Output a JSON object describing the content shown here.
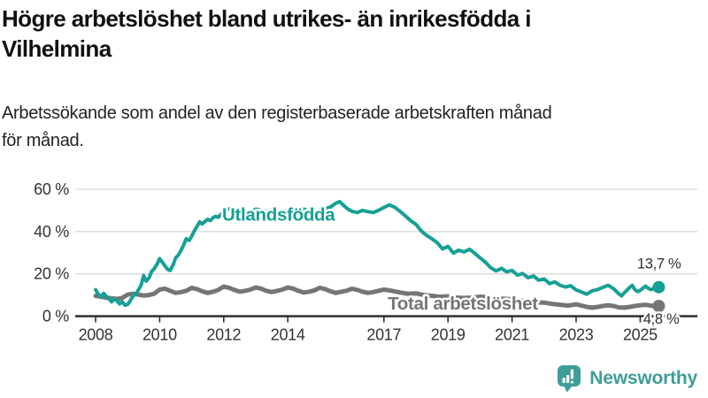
{
  "header": {
    "title_lines": [
      "Högre arbetslöshet bland utrikes- än inrikesfödda i",
      "Vilhelmina"
    ],
    "subtitle_lines": [
      "Arbetssökande som andel av den registerbaserade arbetskraften månad",
      "för månad."
    ]
  },
  "branding": {
    "name": "Newsworthy",
    "brand_color": "#3d9e98",
    "icon": "newsworthy-bar-chart-bubble-icon"
  },
  "chart_data": {
    "type": "line",
    "title": "Högre arbetslöshet bland utrikes- än inrikesfödda i Vilhelmina",
    "subtitle": "Arbetssökande som andel av den registerbaserade arbetskraften månad för månad.",
    "x_axis": {
      "ticks": [
        2008,
        2010,
        2012,
        2014,
        2017,
        2019,
        2021,
        2023,
        2025
      ],
      "range": [
        2007.4,
        2025.8
      ],
      "unit": "year"
    },
    "y_axis": {
      "ticks": [
        0,
        20,
        40,
        60
      ],
      "tick_suffix": " %",
      "range": [
        0,
        62
      ],
      "grid": true,
      "grid_color": "#d9d9d9",
      "axis_color": "#2e2e2e"
    },
    "series": [
      {
        "name": "Total arbetslöshet",
        "color": "#757575",
        "line_width": 5,
        "label_pos": [
          2017.12,
          3.2
        ],
        "end_value": 4.8,
        "end_label": "4,8 %",
        "points": [
          [
            2008.0,
            9.6
          ],
          [
            2008.17,
            9.2
          ],
          [
            2008.33,
            8.8
          ],
          [
            2008.5,
            8.4
          ],
          [
            2008.67,
            8.2
          ],
          [
            2008.83,
            8.6
          ],
          [
            2009.0,
            10.2
          ],
          [
            2009.17,
            10.6
          ],
          [
            2009.33,
            10.2
          ],
          [
            2009.5,
            9.8
          ],
          [
            2009.67,
            10.0
          ],
          [
            2009.83,
            10.6
          ],
          [
            2010.0,
            12.6
          ],
          [
            2010.17,
            13.0
          ],
          [
            2010.33,
            12.0
          ],
          [
            2010.5,
            11.0
          ],
          [
            2010.67,
            11.4
          ],
          [
            2010.83,
            12.0
          ],
          [
            2011.0,
            13.4
          ],
          [
            2011.17,
            12.8
          ],
          [
            2011.33,
            11.8
          ],
          [
            2011.5,
            11.0
          ],
          [
            2011.67,
            11.6
          ],
          [
            2011.83,
            12.4
          ],
          [
            2012.0,
            14.0
          ],
          [
            2012.17,
            13.4
          ],
          [
            2012.33,
            12.4
          ],
          [
            2012.5,
            11.6
          ],
          [
            2012.67,
            12.0
          ],
          [
            2012.83,
            12.6
          ],
          [
            2013.0,
            13.6
          ],
          [
            2013.17,
            13.0
          ],
          [
            2013.33,
            12.0
          ],
          [
            2013.5,
            11.4
          ],
          [
            2013.67,
            12.0
          ],
          [
            2013.83,
            12.6
          ],
          [
            2014.0,
            13.6
          ],
          [
            2014.17,
            13.0
          ],
          [
            2014.33,
            12.0
          ],
          [
            2014.5,
            11.2
          ],
          [
            2014.67,
            11.6
          ],
          [
            2014.83,
            12.2
          ],
          [
            2015.0,
            13.4
          ],
          [
            2015.17,
            12.8
          ],
          [
            2015.33,
            11.8
          ],
          [
            2015.5,
            11.0
          ],
          [
            2015.67,
            11.6
          ],
          [
            2015.83,
            12.0
          ],
          [
            2016.0,
            13.0
          ],
          [
            2016.17,
            12.4
          ],
          [
            2016.33,
            11.6
          ],
          [
            2016.5,
            11.0
          ],
          [
            2016.67,
            11.4
          ],
          [
            2016.83,
            12.0
          ],
          [
            2017.0,
            12.6
          ],
          [
            2017.25,
            12.0
          ],
          [
            2017.5,
            11.2
          ],
          [
            2017.75,
            10.6
          ],
          [
            2018.0,
            10.8
          ],
          [
            2018.25,
            10.0
          ],
          [
            2018.5,
            9.6
          ],
          [
            2018.75,
            9.2
          ],
          [
            2019.0,
            9.4
          ],
          [
            2019.25,
            8.8
          ],
          [
            2019.5,
            8.6
          ],
          [
            2019.75,
            8.8
          ],
          [
            2020.0,
            9.2
          ],
          [
            2020.25,
            9.0
          ],
          [
            2020.5,
            8.6
          ],
          [
            2020.75,
            8.2
          ],
          [
            2021.0,
            8.0
          ],
          [
            2021.25,
            7.4
          ],
          [
            2021.5,
            7.0
          ],
          [
            2021.75,
            6.6
          ],
          [
            2022.0,
            6.4
          ],
          [
            2022.25,
            5.8
          ],
          [
            2022.5,
            5.4
          ],
          [
            2022.75,
            5.0
          ],
          [
            2023.0,
            5.6
          ],
          [
            2023.17,
            5.0
          ],
          [
            2023.33,
            4.4
          ],
          [
            2023.5,
            4.0
          ],
          [
            2023.67,
            4.4
          ],
          [
            2023.83,
            4.8
          ],
          [
            2024.0,
            5.2
          ],
          [
            2024.17,
            4.8
          ],
          [
            2024.33,
            4.2
          ],
          [
            2024.5,
            4.0
          ],
          [
            2024.67,
            4.4
          ],
          [
            2024.83,
            4.8
          ],
          [
            2025.0,
            5.2
          ],
          [
            2025.17,
            5.4
          ],
          [
            2025.33,
            5.0
          ],
          [
            2025.42,
            4.8
          ],
          [
            2025.58,
            4.8
          ]
        ]
      },
      {
        "name": "Utlandsfödda",
        "color": "#16a096",
        "line_width": 4,
        "label_pos": [
          2011.95,
          45.2
        ],
        "end_value": 13.7,
        "end_label": "13,7 %",
        "points": [
          [
            2008.0,
            12.5
          ],
          [
            2008.08,
            10.5
          ],
          [
            2008.17,
            9.0
          ],
          [
            2008.25,
            10.8
          ],
          [
            2008.33,
            9.5
          ],
          [
            2008.42,
            8.2
          ],
          [
            2008.5,
            6.8
          ],
          [
            2008.58,
            8.2
          ],
          [
            2008.67,
            7.2
          ],
          [
            2008.75,
            5.8
          ],
          [
            2008.83,
            6.8
          ],
          [
            2008.92,
            5.2
          ],
          [
            2009.0,
            5.6
          ],
          [
            2009.08,
            7.2
          ],
          [
            2009.17,
            9.6
          ],
          [
            2009.25,
            10.2
          ],
          [
            2009.33,
            12.2
          ],
          [
            2009.42,
            14.6
          ],
          [
            2009.5,
            19.2
          ],
          [
            2009.58,
            16.6
          ],
          [
            2009.67,
            18.2
          ],
          [
            2009.75,
            21.2
          ],
          [
            2009.83,
            22.4
          ],
          [
            2009.92,
            24.6
          ],
          [
            2010.0,
            27.2
          ],
          [
            2010.08,
            25.6
          ],
          [
            2010.17,
            23.6
          ],
          [
            2010.25,
            22.2
          ],
          [
            2010.33,
            21.6
          ],
          [
            2010.42,
            24.2
          ],
          [
            2010.5,
            27.6
          ],
          [
            2010.58,
            28.8
          ],
          [
            2010.67,
            31.2
          ],
          [
            2010.75,
            33.8
          ],
          [
            2010.83,
            36.6
          ],
          [
            2010.92,
            35.8
          ],
          [
            2011.0,
            37.8
          ],
          [
            2011.08,
            40.2
          ],
          [
            2011.17,
            42.6
          ],
          [
            2011.25,
            44.6
          ],
          [
            2011.33,
            43.6
          ],
          [
            2011.42,
            44.8
          ],
          [
            2011.5,
            45.8
          ],
          [
            2011.58,
            45.2
          ],
          [
            2011.67,
            46.6
          ],
          [
            2011.75,
            47.2
          ],
          [
            2011.83,
            46.8
          ],
          [
            2011.92,
            48.2
          ],
          [
            2012.0,
            49.6
          ],
          [
            2012.17,
            50.8
          ],
          [
            2012.33,
            49.2
          ],
          [
            2012.5,
            50.2
          ],
          [
            2012.67,
            49.6
          ],
          [
            2012.83,
            49.2
          ],
          [
            2013.0,
            50.6
          ],
          [
            2013.17,
            50.0
          ],
          [
            2013.33,
            49.4
          ],
          [
            2013.5,
            50.2
          ],
          [
            2013.67,
            49.6
          ],
          [
            2013.83,
            49.0
          ],
          [
            2014.0,
            50.2
          ],
          [
            2014.17,
            49.6
          ],
          [
            2014.33,
            50.0
          ],
          [
            2014.5,
            50.6
          ],
          [
            2014.67,
            49.8
          ],
          [
            2014.83,
            49.4
          ],
          [
            2015.0,
            50.2
          ],
          [
            2015.17,
            50.8
          ],
          [
            2015.33,
            51.6
          ],
          [
            2015.5,
            53.4
          ],
          [
            2015.62,
            54.2
          ],
          [
            2015.75,
            52.2
          ],
          [
            2015.88,
            50.6
          ],
          [
            2016.0,
            49.6
          ],
          [
            2016.17,
            49.0
          ],
          [
            2016.33,
            50.0
          ],
          [
            2016.5,
            49.4
          ],
          [
            2016.67,
            49.0
          ],
          [
            2016.83,
            50.0
          ],
          [
            2017.0,
            51.4
          ],
          [
            2017.17,
            52.6
          ],
          [
            2017.33,
            51.6
          ],
          [
            2017.5,
            49.6
          ],
          [
            2017.67,
            47.4
          ],
          [
            2017.83,
            45.2
          ],
          [
            2018.0,
            43.4
          ],
          [
            2018.17,
            40.2
          ],
          [
            2018.33,
            38.2
          ],
          [
            2018.5,
            36.6
          ],
          [
            2018.67,
            34.6
          ],
          [
            2018.83,
            31.8
          ],
          [
            2019.0,
            33.0
          ],
          [
            2019.17,
            29.8
          ],
          [
            2019.33,
            31.2
          ],
          [
            2019.5,
            30.4
          ],
          [
            2019.67,
            31.6
          ],
          [
            2019.83,
            29.8
          ],
          [
            2020.0,
            27.6
          ],
          [
            2020.17,
            25.4
          ],
          [
            2020.33,
            23.0
          ],
          [
            2020.5,
            21.4
          ],
          [
            2020.67,
            22.6
          ],
          [
            2020.83,
            21.0
          ],
          [
            2021.0,
            21.6
          ],
          [
            2021.17,
            19.4
          ],
          [
            2021.33,
            20.2
          ],
          [
            2021.5,
            18.2
          ],
          [
            2021.67,
            19.0
          ],
          [
            2021.83,
            17.0
          ],
          [
            2022.0,
            17.6
          ],
          [
            2022.17,
            15.4
          ],
          [
            2022.33,
            16.2
          ],
          [
            2022.5,
            14.6
          ],
          [
            2022.67,
            13.8
          ],
          [
            2022.83,
            14.4
          ],
          [
            2023.0,
            12.4
          ],
          [
            2023.17,
            11.4
          ],
          [
            2023.33,
            10.4
          ],
          [
            2023.5,
            12.0
          ],
          [
            2023.67,
            12.6
          ],
          [
            2023.83,
            13.6
          ],
          [
            2024.0,
            14.6
          ],
          [
            2024.17,
            13.0
          ],
          [
            2024.33,
            10.6
          ],
          [
            2024.42,
            9.6
          ],
          [
            2024.5,
            11.0
          ],
          [
            2024.58,
            12.2
          ],
          [
            2024.67,
            13.6
          ],
          [
            2024.75,
            14.6
          ],
          [
            2024.83,
            12.6
          ],
          [
            2024.92,
            11.6
          ],
          [
            2025.0,
            12.2
          ],
          [
            2025.08,
            13.2
          ],
          [
            2025.17,
            14.2
          ],
          [
            2025.25,
            13.2
          ],
          [
            2025.33,
            12.6
          ],
          [
            2025.42,
            13.0
          ],
          [
            2025.58,
            13.7
          ]
        ]
      }
    ]
  }
}
